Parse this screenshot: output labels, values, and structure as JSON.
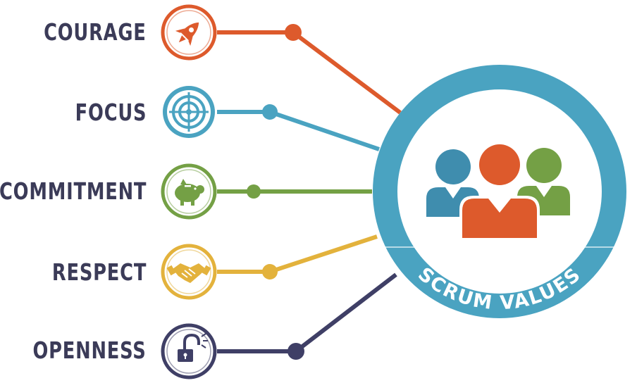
{
  "values": [
    {
      "key": "courage",
      "label": "COURAGE",
      "color": "#dd5a2c",
      "icon": "rocket-icon"
    },
    {
      "key": "focus",
      "label": "FOCUS",
      "color": "#4aa3c1",
      "icon": "target-icon"
    },
    {
      "key": "commitment",
      "label": "COMMITMENT",
      "color": "#74a045",
      "icon": "piggy-bank-icon"
    },
    {
      "key": "respect",
      "label": "RESPECT",
      "color": "#e3b23c",
      "icon": "handshake-icon"
    },
    {
      "key": "openness",
      "label": "OPENNESS",
      "color": "#3f3f66",
      "icon": "open-lock-icon"
    }
  ],
  "hub": {
    "title": "SCRUM VALUES",
    "ring_color": "#4aa3c1",
    "icon": "team-icon",
    "people_colors": [
      "#3f8dae",
      "#dd5a2c",
      "#74a045"
    ]
  }
}
